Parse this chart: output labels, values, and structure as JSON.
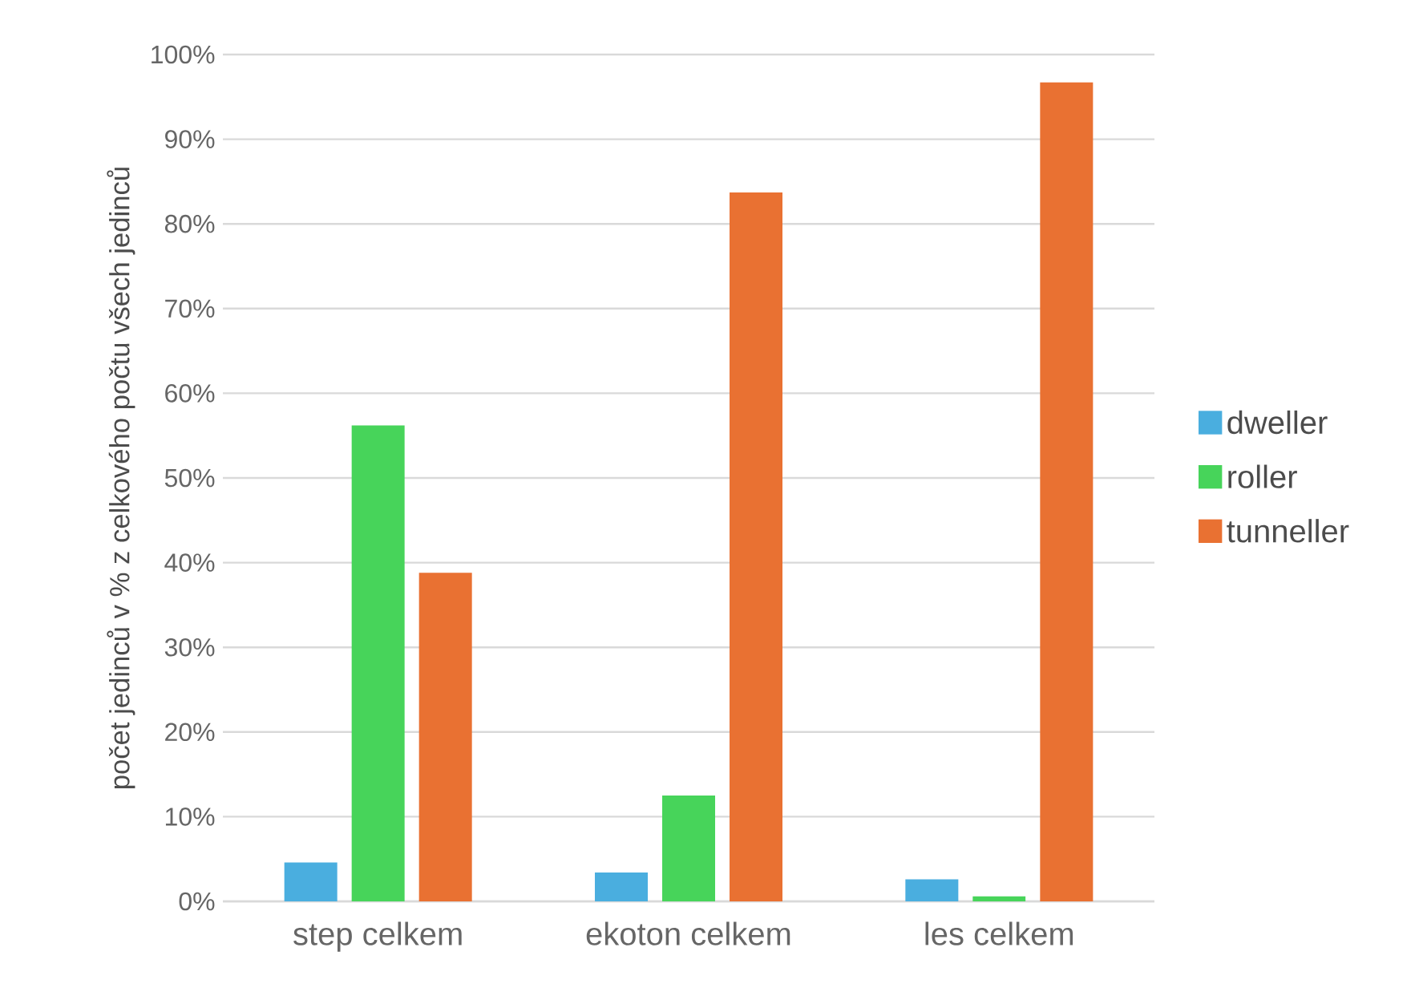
{
  "chart_data": {
    "type": "bar",
    "ylabel": "počet jedinců v % z celkového počtu všech jedinců",
    "categories": [
      "step celkem",
      "ekoton celkem",
      "les celkem"
    ],
    "series": [
      {
        "name": "dweller",
        "color": "#4aaedf",
        "values": [
          4.6,
          3.4,
          2.6
        ]
      },
      {
        "name": "roller",
        "color": "#47d45a",
        "values": [
          56.2,
          12.5,
          0.6
        ]
      },
      {
        "name": "tunneller",
        "color": "#e97132",
        "values": [
          38.8,
          83.7,
          96.7
        ]
      }
    ],
    "ylim": [
      0,
      100
    ],
    "yticks": [
      {
        "value": 0,
        "label": "0%"
      },
      {
        "value": 10,
        "label": "10%"
      },
      {
        "value": 20,
        "label": "20%"
      },
      {
        "value": 30,
        "label": "30%"
      },
      {
        "value": 40,
        "label": "40%"
      },
      {
        "value": 50,
        "label": "50%"
      },
      {
        "value": 60,
        "label": "60%"
      },
      {
        "value": 70,
        "label": "70%"
      },
      {
        "value": 80,
        "label": "80%"
      },
      {
        "value": 90,
        "label": "90%"
      },
      {
        "value": 100,
        "label": "100%"
      }
    ],
    "grid": "y",
    "legend": "right"
  }
}
